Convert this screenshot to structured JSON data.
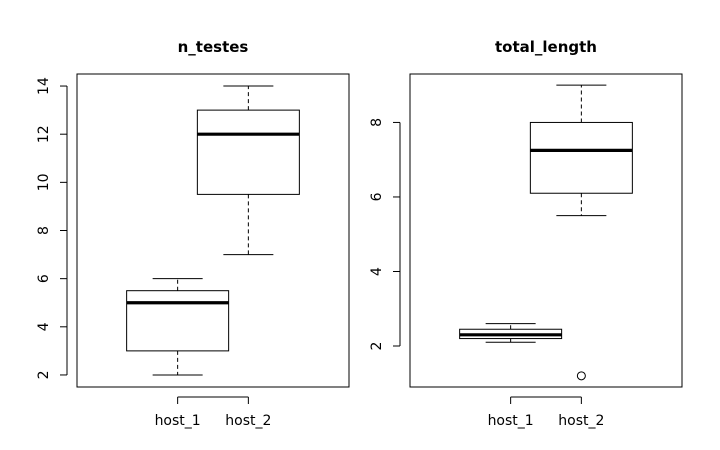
{
  "chart_data": [
    {
      "type": "box",
      "title": "n_testes",
      "xlabel": "",
      "ylabel": "",
      "categories": [
        "host_1",
        "host_2"
      ],
      "ylim": [
        1.5,
        14.5
      ],
      "yticks": [
        2,
        4,
        6,
        8,
        10,
        12,
        14
      ],
      "boxes": [
        {
          "category": "host_1",
          "min": 2,
          "q1": 3,
          "median": 5,
          "q3": 5.5,
          "max": 6,
          "outliers": []
        },
        {
          "category": "host_2",
          "min": 7,
          "q1": 9.5,
          "median": 12,
          "q3": 13,
          "max": 14,
          "outliers": []
        }
      ]
    },
    {
      "type": "box",
      "title": "total_length",
      "xlabel": "",
      "ylabel": "",
      "categories": [
        "host_1",
        "host_2"
      ],
      "ylim": [
        0.9,
        9.3
      ],
      "yticks": [
        2,
        4,
        6,
        8
      ],
      "boxes": [
        {
          "category": "host_1",
          "min": 2.1,
          "q1": 2.2,
          "median": 2.3,
          "q3": 2.45,
          "max": 2.6,
          "outliers": []
        },
        {
          "category": "host_2",
          "min": 5.5,
          "q1": 6.1,
          "median": 7.25,
          "q3": 8.0,
          "max": 9.0,
          "outliers": [
            1.2
          ]
        }
      ]
    }
  ]
}
